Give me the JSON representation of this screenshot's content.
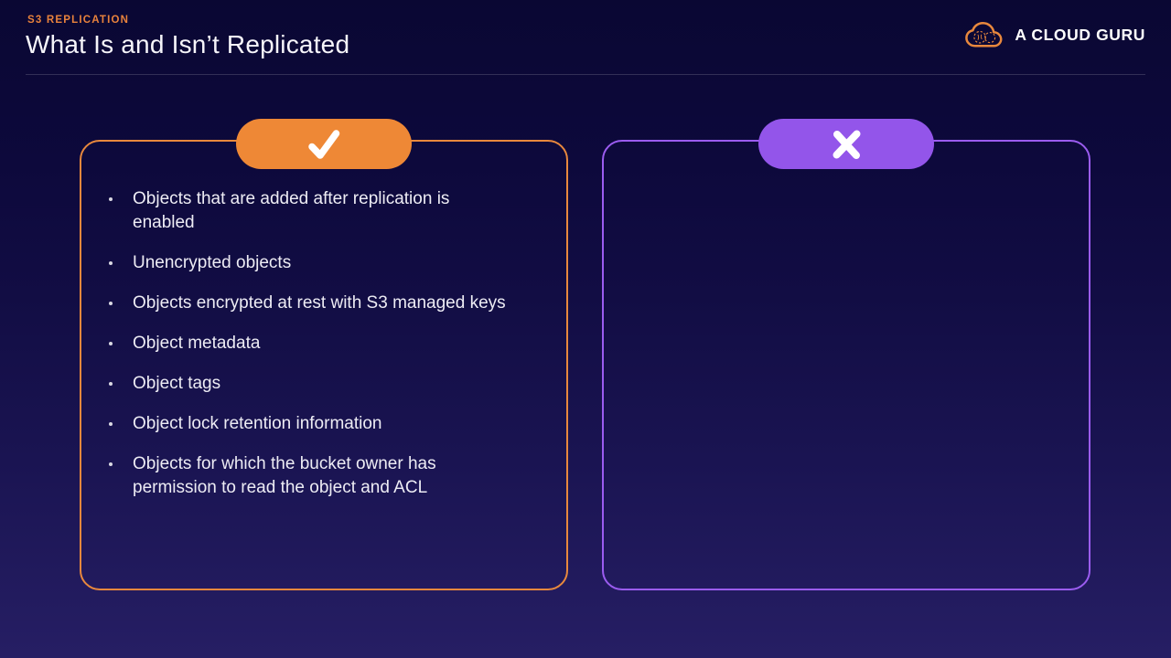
{
  "header": {
    "eyebrow": "S3 REPLICATION",
    "title": "What Is and Isn’t Replicated"
  },
  "brand": {
    "name": "A CLOUD GURU"
  },
  "panels": {
    "replicated": {
      "badge_icon": "check-icon",
      "items": [
        "Objects that are added after replication is enabled",
        "Unencrypted objects",
        "Objects encrypted at rest with S3 managed keys",
        "Object metadata",
        "Object tags",
        "Object lock retention information",
        "Objects for which the bucket owner has permission to read the object and ACL"
      ]
    },
    "not_replicated": {
      "badge_icon": "x-icon",
      "items": []
    }
  },
  "colors": {
    "accent_orange": "#EE8836",
    "accent_purple": "#9355EA",
    "border_orange": "#E8883D",
    "border_purple": "#9B5CF0",
    "eyebrow_orange": "#E8823C",
    "background_top": "#0A0733",
    "background_bottom": "#261E64",
    "text": "#EDECF4"
  }
}
